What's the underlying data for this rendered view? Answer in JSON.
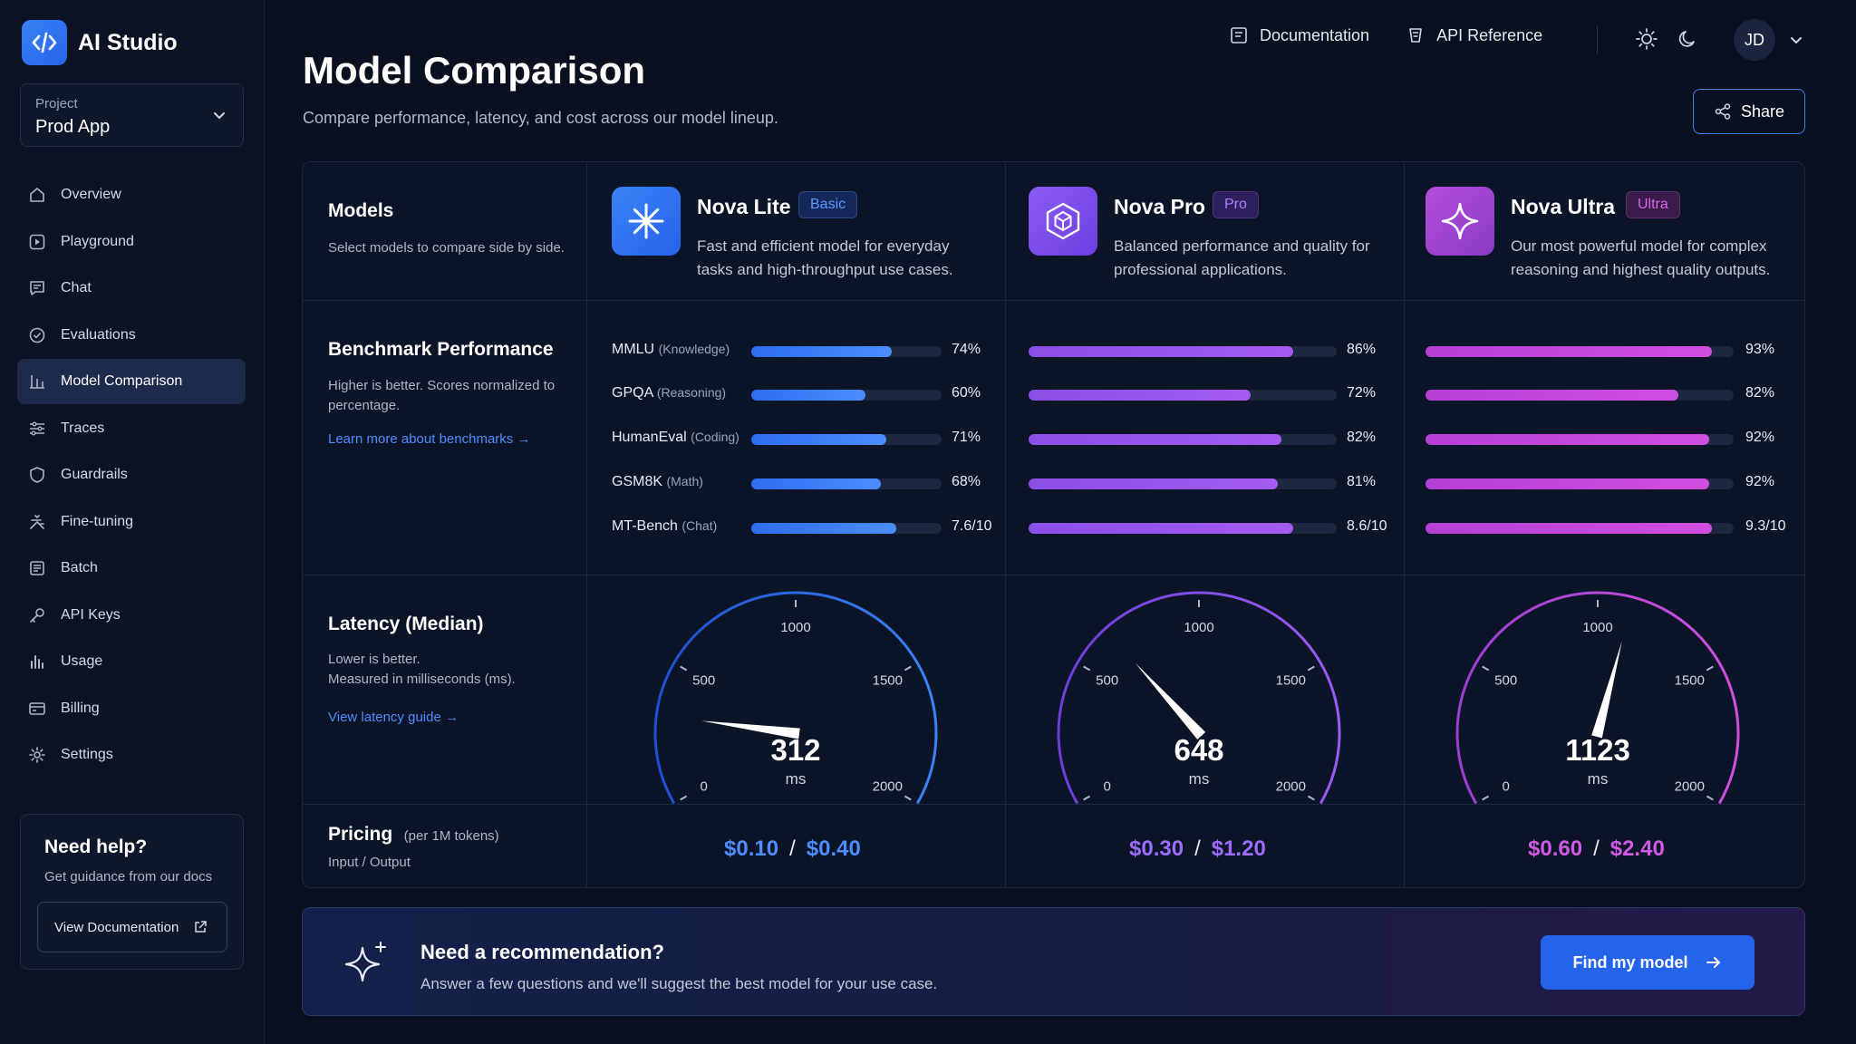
{
  "brand": {
    "name": "AI Studio",
    "logo_icon": "code-icon"
  },
  "project": {
    "label": "Project",
    "value": "Prod App"
  },
  "sidebar": {
    "items": [
      {
        "label": "Overview",
        "icon": "home-icon"
      },
      {
        "label": "Playground",
        "icon": "play-icon"
      },
      {
        "label": "Chat",
        "icon": "chat-icon"
      },
      {
        "label": "Evaluations",
        "icon": "shield-check-icon"
      },
      {
        "label": "Model Comparison",
        "icon": "compare-icon",
        "active": true
      },
      {
        "label": "Traces",
        "icon": "sliders-icon"
      },
      {
        "label": "Guardrails",
        "icon": "shield-icon"
      },
      {
        "label": "Fine-tuning",
        "icon": "tune-icon"
      },
      {
        "label": "Batch",
        "icon": "batch-icon"
      },
      {
        "label": "API Keys",
        "icon": "key-icon"
      },
      {
        "label": "Usage",
        "icon": "bar-chart-icon"
      },
      {
        "label": "Billing",
        "icon": "card-icon"
      },
      {
        "label": "Settings",
        "icon": "gear-icon"
      }
    ]
  },
  "help": {
    "title": "Need help?",
    "subtitle": "Get guidance from our docs",
    "button": "View Documentation"
  },
  "header": {
    "title": "Model Comparison",
    "subtitle": "Compare performance, latency, and cost across our model lineup.",
    "links": [
      "Documentation",
      "API Reference"
    ],
    "avatar": "JD",
    "share": "Share"
  },
  "models_row": {
    "title": "Models",
    "desc": "Select models to compare side by side."
  },
  "benchmark_row": {
    "title": "Benchmark Performance",
    "desc": "Higher is better. Scores normalized to percentage.",
    "link": "Learn more about benchmarks →",
    "labels": [
      {
        "name": "MMLU",
        "cat": "(Knowledge)"
      },
      {
        "name": "GPQA",
        "cat": "(Reasoning)"
      },
      {
        "name": "HumanEval",
        "cat": "(Coding)"
      },
      {
        "name": "GSM8K",
        "cat": "(Math)"
      },
      {
        "name": "MT-Bench",
        "cat": "(Chat)"
      }
    ]
  },
  "latency_row": {
    "title": "Latency (Median)",
    "desc1": "Lower is better.",
    "desc2": "Measured in milliseconds (ms).",
    "link": "View latency guide →",
    "ticks": [
      "0",
      "500",
      "1000",
      "1500",
      "2000"
    ],
    "max": 2000
  },
  "pricing_row": {
    "title": "Pricing",
    "unit": "(per 1M tokens)",
    "desc": "Input / Output"
  },
  "models": [
    {
      "name": "Nova Lite",
      "badge": "Basic",
      "icon": "asterisk-icon",
      "desc1": "Fast and efficient model for everyday",
      "desc2": "tasks and high-throughput use cases.",
      "color": "#3b82f6",
      "bench_values": [
        74,
        60,
        71,
        68,
        76
      ],
      "bench_labels": [
        "74%",
        "60%",
        "71%",
        "68%",
        "7.6/10"
      ],
      "latency": 312,
      "latency_label": "312",
      "unit": "ms",
      "price_in": "$0.10",
      "price_out": "$0.40"
    },
    {
      "name": "Nova Pro",
      "badge": "Pro",
      "icon": "cube-icon",
      "desc1": "Balanced performance and quality for",
      "desc2": "professional applications.",
      "color": "#8b5cf6",
      "bench_values": [
        86,
        72,
        82,
        81,
        86
      ],
      "bench_labels": [
        "86%",
        "72%",
        "82%",
        "81%",
        "8.6/10"
      ],
      "latency": 648,
      "latency_label": "648",
      "unit": "ms",
      "price_in": "$0.30",
      "price_out": "$1.20"
    },
    {
      "name": "Nova Ultra",
      "badge": "Ultra",
      "icon": "sparkle-icon",
      "desc1": "Our most powerful model for complex",
      "desc2": "reasoning and highest quality outputs.",
      "color": "#c04ad8",
      "bench_values": [
        93,
        82,
        92,
        92,
        93
      ],
      "bench_labels": [
        "93%",
        "82%",
        "92%",
        "92%",
        "9.3/10"
      ],
      "latency": 1123,
      "latency_label": "1123",
      "unit": "ms",
      "price_in": "$0.60",
      "price_out": "$2.40"
    }
  ],
  "recommendation": {
    "title": "Need a recommendation?",
    "subtitle": "Answer a few questions and we'll suggest the best model for your use case.",
    "button": "Find my model"
  }
}
